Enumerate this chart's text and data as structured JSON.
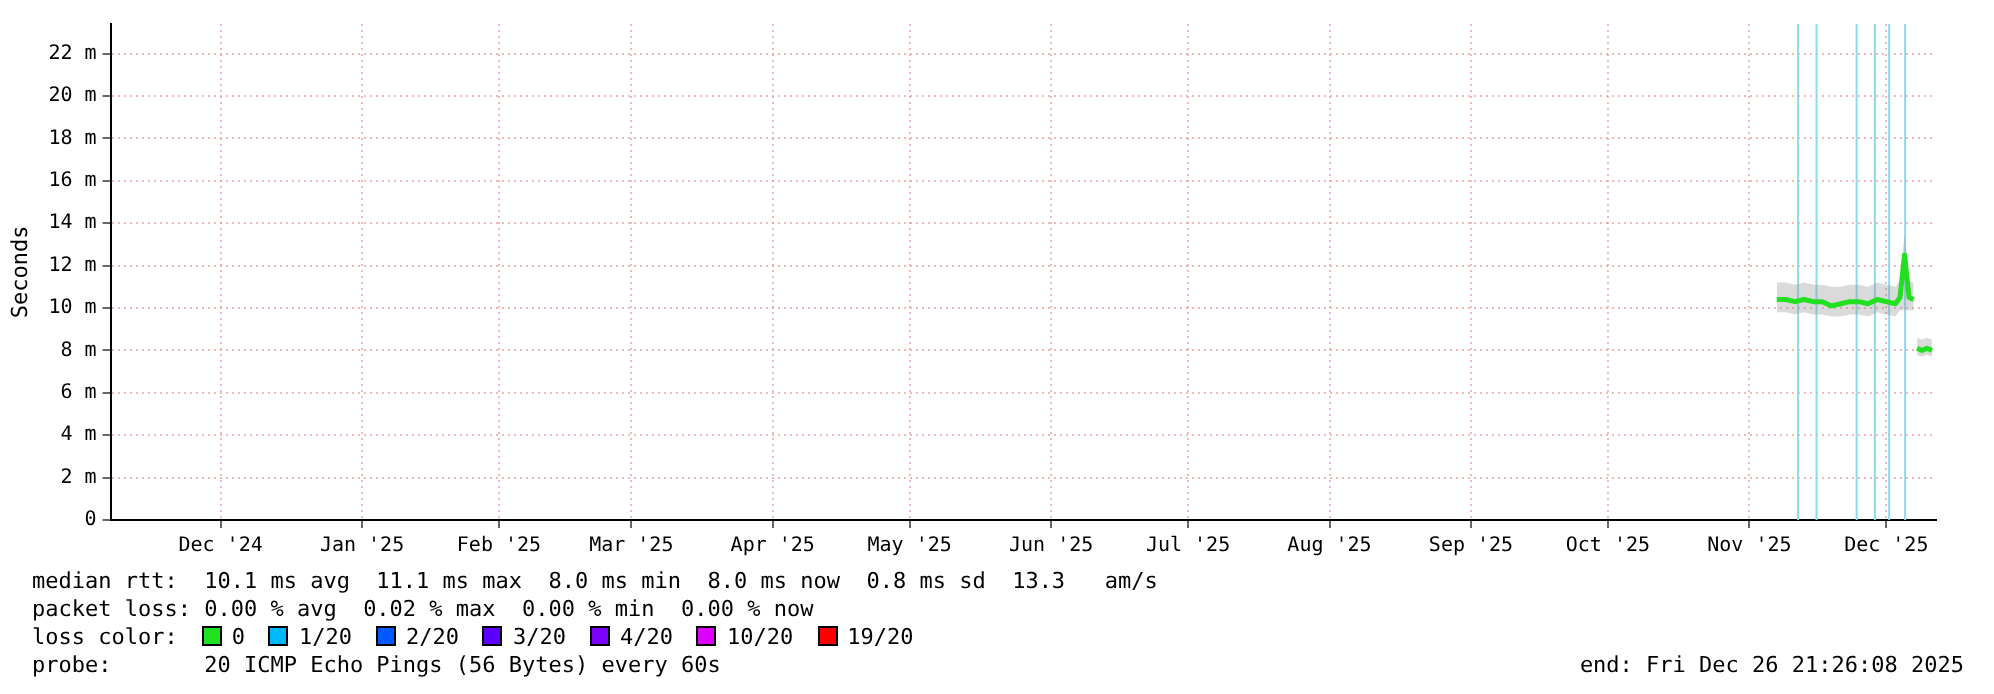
{
  "chart_data": {
    "type": "line",
    "ylabel": "Seconds",
    "xlim": [
      "2024-11-21T21:26",
      "2025-12-26T21:26"
    ],
    "xticks": [
      {
        "value": "2024-12-16",
        "label": "Dec '24"
      },
      {
        "value": "2025-01-16",
        "label": "Jan '25"
      },
      {
        "value": "2025-02-15",
        "label": "Feb '25"
      },
      {
        "value": "2025-03-16",
        "label": "Mar '25"
      },
      {
        "value": "2025-04-16",
        "label": "Apr '25"
      },
      {
        "value": "2025-05-16",
        "label": "May '25"
      },
      {
        "value": "2025-06-16",
        "label": "Jun '25"
      },
      {
        "value": "2025-07-16",
        "label": "Jul '25"
      },
      {
        "value": "2025-08-16",
        "label": "Aug '25"
      },
      {
        "value": "2025-09-16",
        "label": "Sep '25"
      },
      {
        "value": "2025-10-16",
        "label": "Oct '25"
      },
      {
        "value": "2025-11-16",
        "label": "Nov '25"
      },
      {
        "value": "2025-12-16",
        "label": "Dec '25"
      }
    ],
    "ylim": [
      0,
      23.4
    ],
    "yticks": [
      0,
      {
        "value": 2,
        "label": "2 m"
      },
      {
        "value": 4,
        "label": "4 m"
      },
      {
        "value": 6,
        "label": "6 m"
      },
      {
        "value": 8,
        "label": "8 m"
      },
      {
        "value": 10,
        "label": "10 m"
      },
      {
        "value": 12,
        "label": "12 m"
      },
      {
        "value": 14,
        "label": "14 m"
      },
      {
        "value": 16,
        "label": "16 m"
      },
      {
        "value": 18,
        "label": "18 m"
      },
      {
        "value": 20,
        "label": "20 m"
      },
      {
        "value": 22,
        "label": "22 m"
      }
    ],
    "grid": true,
    "legend": "bottom",
    "legend_title": "loss color:",
    "marker": "none",
    "series": [
      {
        "name": "0",
        "color": "#20e020",
        "x": [
          "2025-11-22",
          "2025-11-24",
          "2025-11-26",
          "2025-11-28",
          "2025-11-30",
          "2025-12-02",
          "2025-12-04",
          "2025-12-06",
          "2025-12-08",
          "2025-12-10",
          "2025-12-12",
          "2025-12-14",
          "2025-12-16",
          "2025-12-18",
          "2025-12-19",
          "2025-12-20",
          "2025-12-21",
          "2025-12-22"
        ],
        "values": [
          10.4,
          10.4,
          10.3,
          10.4,
          10.3,
          10.3,
          10.1,
          10.2,
          10.3,
          10.3,
          10.2,
          10.4,
          10.3,
          10.2,
          10.5,
          12.5,
          10.5,
          10.4
        ],
        "lower": [
          9.8,
          9.8,
          9.7,
          9.8,
          9.7,
          9.7,
          9.6,
          9.6,
          9.7,
          9.7,
          9.6,
          9.8,
          9.7,
          9.6,
          9.9,
          9.9,
          9.9,
          9.9
        ],
        "upper": [
          11.2,
          11.2,
          11.1,
          11.2,
          11.1,
          11.1,
          11,
          11,
          11.1,
          11.1,
          11,
          11.2,
          11.1,
          11,
          11.3,
          13.5,
          11.3,
          11.2
        ]
      },
      {
        "color": "#20e020",
        "x": [
          "2025-12-22T18:00",
          "2025-12-23T20:00",
          "2025-12-24T22:00",
          "2025-12-26T00:00"
        ],
        "values": [
          8.1,
          8.0,
          8.1,
          8.0
        ],
        "lower": [
          7.8,
          7.7,
          7.8,
          7.7
        ],
        "upper": [
          8.6,
          8.5,
          8.6,
          8.5
        ]
      },
      {
        "name": "1/20",
        "color": "#00b8ff"
      },
      {
        "name": "2/20",
        "color": "#0059ff"
      },
      {
        "name": "3/20",
        "color": "#5e00ff"
      },
      {
        "name": "4/20",
        "color": "#7e00ff"
      },
      {
        "name": "10/20",
        "color": "#dd00ff"
      },
      {
        "name": "19/20",
        "color": "#ff0000"
      }
    ],
    "ref_lines": [
      {
        "axis": "x",
        "value": "2025-11-26T16:00",
        "label": null,
        "color": "#8fd8f0"
      },
      {
        "axis": "x",
        "value": "2025-11-30T17:00",
        "label": null,
        "color": "#8fd8f0"
      },
      {
        "axis": "x",
        "value": "2025-12-09T12:00",
        "label": null,
        "color": "#8fd8f0"
      },
      {
        "axis": "x",
        "value": "2025-12-13T12:00",
        "label": null,
        "color": "#8fd8f0"
      },
      {
        "axis": "x",
        "value": "2025-12-16T15:00",
        "label": null,
        "color": "#8fd8f0"
      },
      {
        "axis": "x",
        "value": "2025-12-20T03:00",
        "label": null,
        "color": "#8fd8f0"
      }
    ],
    "annotations": [
      "median rtt:  10.1 ms avg  11.1 ms max  8.0 ms min  8.0 ms now  0.8 ms sd  13.3   am/s",
      "packet loss: 0.00 % avg  0.02 % max  0.00 % min  0.00 % now",
      "probe:       20 ICMP Echo Pings (56 Bytes) every 60s",
      "end: Fri Dec 26 21:26:08 2025"
    ]
  }
}
